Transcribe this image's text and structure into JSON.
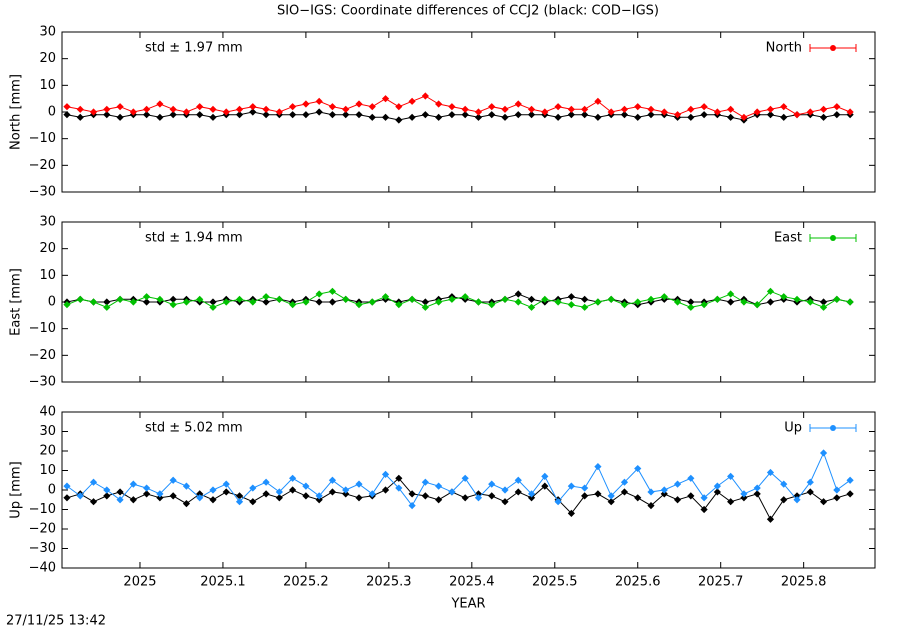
{
  "title": "SIO−IGS: Coordinate differences of CCJ2 (black: COD−IGS)",
  "timestamp": "27/11/25 13:42",
  "chart_data": [
    {
      "type": "line",
      "ylabel": "North [mm]",
      "annotation": "std ± 1.97 mm",
      "xlim": [
        2024.906,
        2025.886
      ],
      "ylim": [
        -30,
        30
      ],
      "xticks": [
        2025,
        2025.1,
        2025.2,
        2025.3,
        2025.4,
        2025.5,
        2025.6,
        2025.7,
        2025.8
      ],
      "yticks": [
        {
          "value": -30,
          "label": "−30"
        },
        {
          "value": -20,
          "label": "−20"
        },
        {
          "value": -10,
          "label": "−10"
        },
        0,
        10,
        20,
        30
      ],
      "x": [
        2024.912,
        2024.928,
        2024.944,
        2024.96,
        2024.976,
        2024.992,
        2025.008,
        2025.024,
        2025.04,
        2025.056,
        2025.072,
        2025.088,
        2025.104,
        2025.12,
        2025.136,
        2025.152,
        2025.168,
        2025.184,
        2025.2,
        2025.216,
        2025.232,
        2025.248,
        2025.264,
        2025.28,
        2025.296,
        2025.312,
        2025.328,
        2025.344,
        2025.36,
        2025.376,
        2025.392,
        2025.408,
        2025.424,
        2025.44,
        2025.456,
        2025.472,
        2025.488,
        2025.504,
        2025.52,
        2025.536,
        2025.552,
        2025.568,
        2025.584,
        2025.6,
        2025.616,
        2025.632,
        2025.648,
        2025.664,
        2025.68,
        2025.696,
        2025.712,
        2025.728,
        2025.744,
        2025.76,
        2025.776,
        2025.792,
        2025.808,
        2025.824,
        2025.84,
        2025.856
      ],
      "series": [
        {
          "color": "#000000",
          "values": [
            -1,
            -2,
            -1,
            -1,
            -2,
            -1,
            -1,
            -2,
            -1,
            -1,
            -1,
            -2,
            -1,
            -1,
            0,
            -1,
            -1,
            -1,
            -1,
            0,
            -1,
            -1,
            -1,
            -2,
            -2,
            -3,
            -2,
            -1,
            -2,
            -1,
            -1,
            -2,
            -1,
            -2,
            -1,
            -1,
            -1,
            -2,
            -1,
            -1,
            -2,
            -1,
            -1,
            -2,
            -1,
            -1,
            -2,
            -2,
            -1,
            -1,
            -2,
            -3,
            -1,
            -1,
            -2,
            -1,
            -1,
            -2,
            -1,
            -1
          ]
        },
        {
          "name": "North",
          "color": "#ff0000",
          "values": [
            2,
            1,
            0,
            1,
            2,
            0,
            1,
            3,
            1,
            0,
            2,
            1,
            0,
            1,
            2,
            1,
            0,
            2,
            3,
            4,
            2,
            1,
            3,
            2,
            5,
            2,
            4,
            6,
            3,
            2,
            1,
            0,
            2,
            1,
            3,
            1,
            0,
            2,
            1,
            1,
            4,
            0,
            1,
            2,
            1,
            0,
            -1,
            1,
            2,
            0,
            1,
            -2,
            0,
            1,
            2,
            -1,
            0,
            1,
            2,
            0
          ]
        }
      ]
    },
    {
      "type": "line",
      "ylabel": "East [mm]",
      "annotation": "std ± 1.94 mm",
      "xlim": [
        2024.906,
        2025.886
      ],
      "ylim": [
        -30,
        30
      ],
      "xticks": [
        2025,
        2025.1,
        2025.2,
        2025.3,
        2025.4,
        2025.5,
        2025.6,
        2025.7,
        2025.8
      ],
      "yticks": [
        {
          "value": -30,
          "label": "−30"
        },
        {
          "value": -20,
          "label": "−20"
        },
        {
          "value": -10,
          "label": "−10"
        },
        0,
        10,
        20,
        30
      ],
      "x": [
        2024.912,
        2024.928,
        2024.944,
        2024.96,
        2024.976,
        2024.992,
        2025.008,
        2025.024,
        2025.04,
        2025.056,
        2025.072,
        2025.088,
        2025.104,
        2025.12,
        2025.136,
        2025.152,
        2025.168,
        2025.184,
        2025.2,
        2025.216,
        2025.232,
        2025.248,
        2025.264,
        2025.28,
        2025.296,
        2025.312,
        2025.328,
        2025.344,
        2025.36,
        2025.376,
        2025.392,
        2025.408,
        2025.424,
        2025.44,
        2025.456,
        2025.472,
        2025.488,
        2025.504,
        2025.52,
        2025.536,
        2025.552,
        2025.568,
        2025.584,
        2025.6,
        2025.616,
        2025.632,
        2025.648,
        2025.664,
        2025.68,
        2025.696,
        2025.712,
        2025.728,
        2025.744,
        2025.76,
        2025.776,
        2025.792,
        2025.808,
        2025.824,
        2025.84,
        2025.856
      ],
      "series": [
        {
          "color": "#000000",
          "values": [
            0,
            1,
            0,
            0,
            1,
            1,
            0,
            0,
            1,
            1,
            0,
            0,
            1,
            0,
            1,
            0,
            1,
            0,
            1,
            0,
            0,
            1,
            0,
            0,
            1,
            0,
            1,
            0,
            1,
            2,
            1,
            0,
            0,
            1,
            3,
            1,
            0,
            1,
            2,
            1,
            0,
            1,
            0,
            -1,
            0,
            1,
            1,
            0,
            0,
            1,
            0,
            1,
            -1,
            0,
            1,
            0,
            1,
            0,
            1,
            0
          ]
        },
        {
          "name": "East",
          "color": "#00c000",
          "values": [
            -1,
            1,
            0,
            -2,
            1,
            0,
            2,
            1,
            -1,
            0,
            1,
            -2,
            0,
            1,
            0,
            2,
            1,
            -1,
            0,
            3,
            4,
            1,
            -1,
            0,
            2,
            -1,
            1,
            -2,
            0,
            1,
            2,
            0,
            -1,
            1,
            0,
            -2,
            1,
            0,
            -1,
            -2,
            0,
            1,
            -1,
            0,
            1,
            2,
            0,
            -2,
            -1,
            1,
            3,
            0,
            -1,
            4,
            2,
            1,
            0,
            -2,
            1,
            0
          ]
        }
      ]
    },
    {
      "type": "line",
      "ylabel": "Up [mm]",
      "xlabel": "YEAR",
      "annotation": "std ± 5.02 mm",
      "xlim": [
        2024.906,
        2025.886
      ],
      "ylim": [
        -40,
        40
      ],
      "xticks": [
        2025,
        2025.1,
        2025.2,
        2025.3,
        2025.4,
        2025.5,
        2025.6,
        2025.7,
        2025.8
      ],
      "yticks": [
        {
          "value": -40,
          "label": "−40"
        },
        {
          "value": -30,
          "label": "−30"
        },
        {
          "value": -20,
          "label": "−20"
        },
        {
          "value": -10,
          "label": "−10"
        },
        0,
        10,
        20,
        30,
        40
      ],
      "x": [
        2024.912,
        2024.928,
        2024.944,
        2024.96,
        2024.976,
        2024.992,
        2025.008,
        2025.024,
        2025.04,
        2025.056,
        2025.072,
        2025.088,
        2025.104,
        2025.12,
        2025.136,
        2025.152,
        2025.168,
        2025.184,
        2025.2,
        2025.216,
        2025.232,
        2025.248,
        2025.264,
        2025.28,
        2025.296,
        2025.312,
        2025.328,
        2025.344,
        2025.36,
        2025.376,
        2025.392,
        2025.408,
        2025.424,
        2025.44,
        2025.456,
        2025.472,
        2025.488,
        2025.504,
        2025.52,
        2025.536,
        2025.552,
        2025.568,
        2025.584,
        2025.6,
        2025.616,
        2025.632,
        2025.648,
        2025.664,
        2025.68,
        2025.696,
        2025.712,
        2025.728,
        2025.744,
        2025.76,
        2025.776,
        2025.792,
        2025.808,
        2025.824,
        2025.84,
        2025.856
      ],
      "series": [
        {
          "color": "#000000",
          "values": [
            -4,
            -2,
            -6,
            -3,
            -1,
            -5,
            -2,
            -4,
            -3,
            -7,
            -2,
            -5,
            -1,
            -3,
            -6,
            -2,
            -4,
            0,
            -3,
            -5,
            -1,
            -2,
            -4,
            -3,
            0,
            6,
            -2,
            -3,
            -5,
            -1,
            -4,
            -2,
            -3,
            -6,
            -1,
            -4,
            2,
            -5,
            -12,
            -3,
            -2,
            -6,
            -1,
            -4,
            -8,
            -2,
            -5,
            -3,
            -10,
            -1,
            -6,
            -4,
            -2,
            -15,
            -5,
            -3,
            -1,
            -6,
            -4,
            -2
          ]
        },
        {
          "name": "Up",
          "color": "#1e90ff",
          "values": [
            2,
            -3,
            4,
            0,
            -5,
            3,
            1,
            -2,
            5,
            2,
            -4,
            0,
            3,
            -6,
            1,
            4,
            -1,
            6,
            2,
            -3,
            5,
            0,
            3,
            -2,
            8,
            1,
            -8,
            4,
            2,
            -1,
            6,
            -4,
            3,
            0,
            5,
            -2,
            7,
            -6,
            2,
            1,
            12,
            -3,
            4,
            11,
            -1,
            0,
            3,
            6,
            -4,
            2,
            7,
            -2,
            1,
            9,
            3,
            -5,
            4,
            19,
            0,
            5
          ]
        }
      ]
    }
  ]
}
